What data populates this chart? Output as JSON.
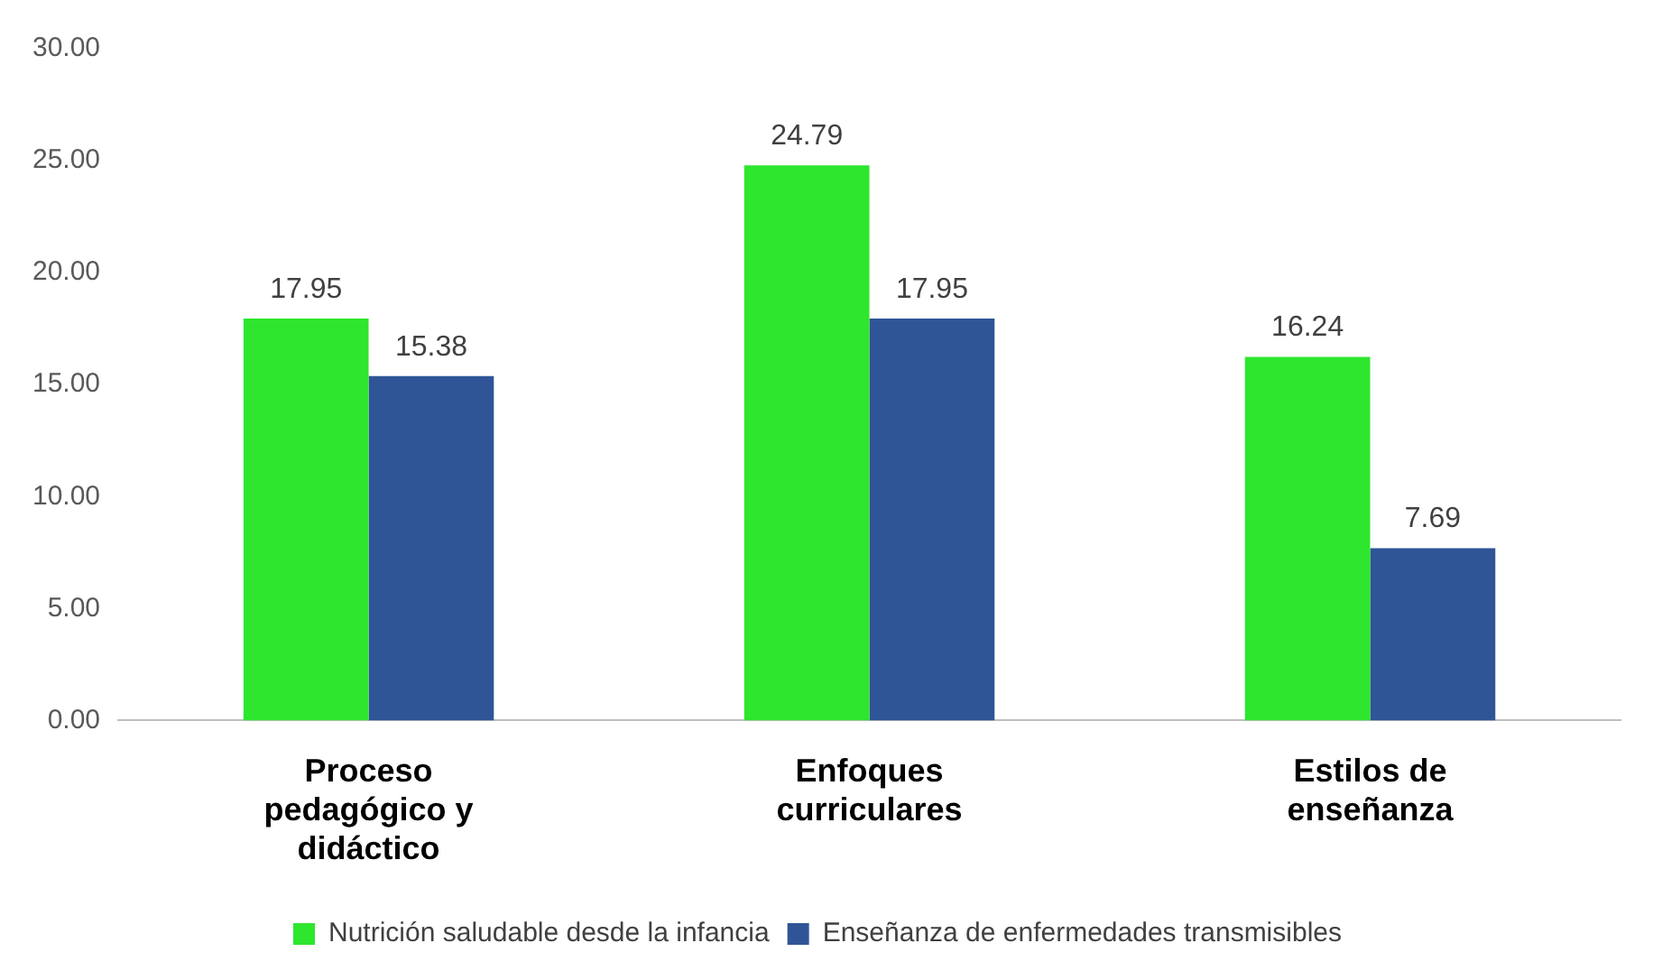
{
  "chart_data": {
    "type": "bar",
    "categories": [
      "Proceso pedagógico y didáctico",
      "Enfoques curriculares",
      "Estilos de enseñanza"
    ],
    "series": [
      {
        "name": "Nutrición saludable desde la infancia",
        "color": "#2ee62e",
        "values": [
          17.95,
          24.79,
          16.24
        ]
      },
      {
        "name": "Enseñanza de enfermedades transmisibles",
        "color": "#2f5597",
        "values": [
          15.38,
          17.95,
          7.69
        ]
      }
    ],
    "ylim": [
      0,
      30
    ],
    "yticks": [
      {
        "value": 0,
        "label": "0.00"
      },
      {
        "value": 5,
        "label": "5.00"
      },
      {
        "value": 10,
        "label": "10.00"
      },
      {
        "value": 15,
        "label": "15.00"
      },
      {
        "value": 20,
        "label": "20.00"
      },
      {
        "value": 25,
        "label": "25.00"
      },
      {
        "value": 30,
        "label": "30.00"
      }
    ],
    "data_labels": true,
    "grid": false,
    "legend": "bottom"
  }
}
